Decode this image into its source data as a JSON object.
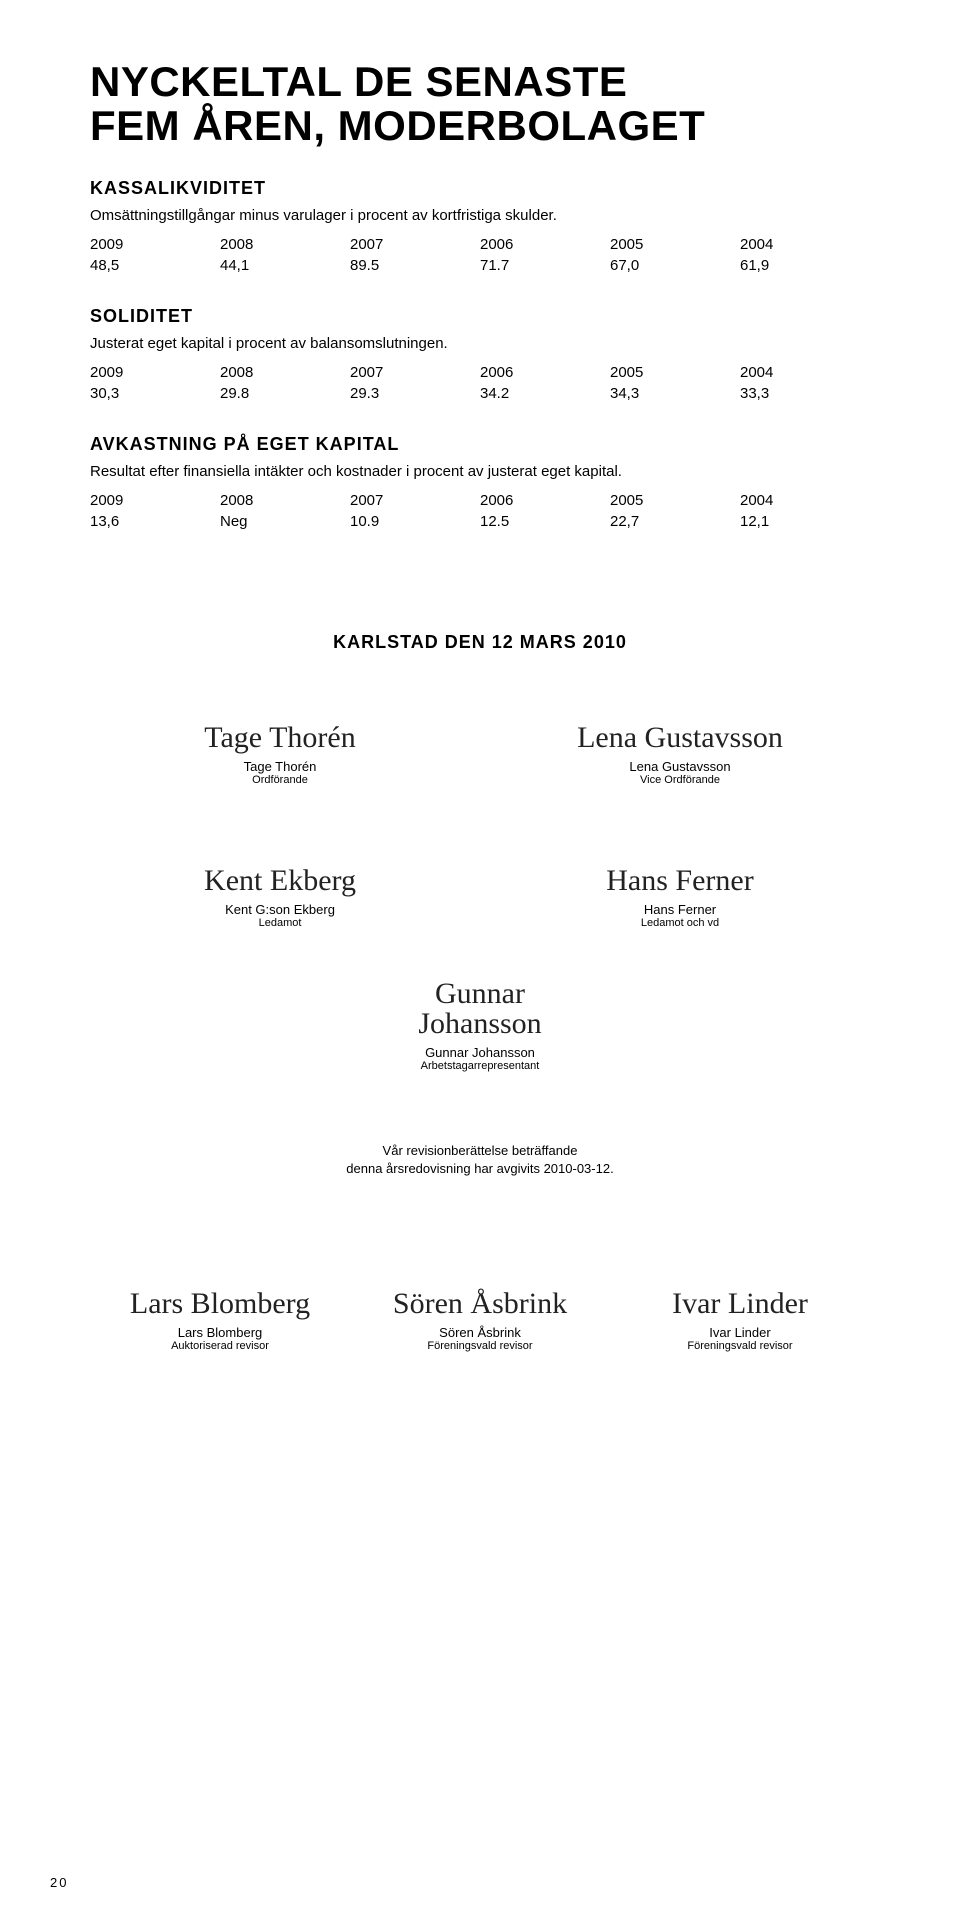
{
  "title_line1": "NYCKELTAL DE SENASTE",
  "title_line2": "FEM ÅREN, MODERBOLAGET",
  "sections": {
    "kassa": {
      "heading": "KASSALIKVIDITET",
      "desc": "Omsättningstillgångar minus varulager i procent av kortfristiga skulder.",
      "years": [
        "2009",
        "2008",
        "2007",
        "2006",
        "2005",
        "2004"
      ],
      "values": [
        "48,5",
        "44,1",
        "89.5",
        "71.7",
        "67,0",
        "61,9"
      ]
    },
    "soliditet": {
      "heading": "SOLIDITET",
      "desc": "Justerat eget kapital i procent av balansomslutningen.",
      "years": [
        "2009",
        "2008",
        "2007",
        "2006",
        "2005",
        "2004"
      ],
      "values": [
        "30,3",
        "29.8",
        "29.3",
        "34.2",
        "34,3",
        "33,3"
      ]
    },
    "avkastning": {
      "heading": "AVKASTNING PÅ EGET KAPITAL",
      "desc": "Resultat efter finansiella intäkter och kostnader i procent av justerat eget kapital.",
      "years": [
        "2009",
        "2008",
        "2007",
        "2006",
        "2005",
        "2004"
      ],
      "values": [
        "13,6",
        "Neg",
        "10.9",
        "12.5",
        "22,7",
        "12,1"
      ]
    }
  },
  "signing": {
    "heading": "KARLSTAD DEN 12 MARS 2010",
    "row1": [
      {
        "script": "Tage Thorén",
        "name": "Tage Thorén",
        "role": "Ordförande"
      },
      {
        "script": "Lena Gustavsson",
        "name": "Lena Gustavsson",
        "role": "Vice Ordförande"
      }
    ],
    "row2": [
      {
        "script": "Kent Ekberg",
        "name": "Kent G:son Ekberg",
        "role": "Ledamot"
      },
      {
        "script": "Hans Ferner",
        "name": "Hans Ferner",
        "role": "Ledamot och vd"
      }
    ],
    "row3": [
      {
        "script": "Gunnar Johansson",
        "name": "Gunnar Johansson",
        "role": "Arbetstagarrepresentant"
      }
    ],
    "audit_note_line1": "Vår revisionberättelse beträffande",
    "audit_note_line2": "denna årsredovisning har avgivits 2010-03-12.",
    "auditors": [
      {
        "script": "Lars Blomberg",
        "name": "Lars Blomberg",
        "role": "Auktoriserad revisor"
      },
      {
        "script": "Sören Åsbrink",
        "name": "Sören Åsbrink",
        "role": "Föreningsvald revisor"
      },
      {
        "script": "Ivar Linder",
        "name": "Ivar Linder",
        "role": "Föreningsvald revisor"
      }
    ]
  },
  "page_number": "20"
}
